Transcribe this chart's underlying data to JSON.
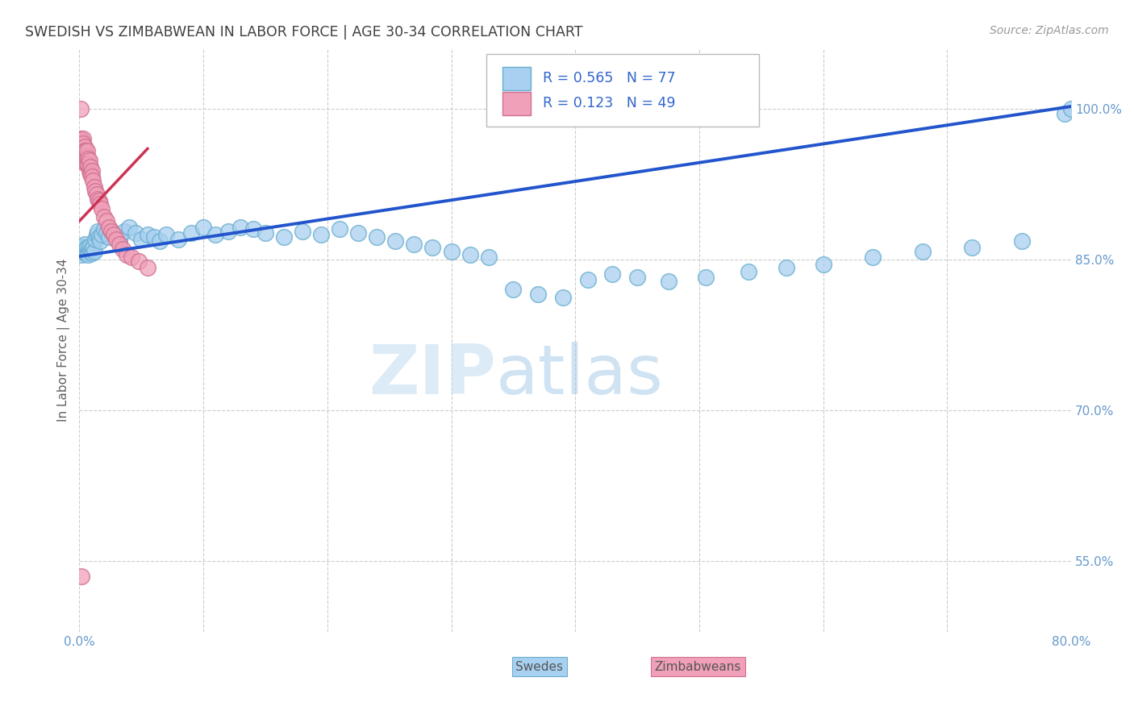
{
  "title": "SWEDISH VS ZIMBABWEAN IN LABOR FORCE | AGE 30-34 CORRELATION CHART",
  "source": "Source: ZipAtlas.com",
  "ylabel": "In Labor Force | Age 30-34",
  "xlim": [
    0.0,
    0.8
  ],
  "ylim": [
    0.48,
    1.06
  ],
  "xticks": [
    0.0,
    0.1,
    0.2,
    0.3,
    0.4,
    0.5,
    0.6,
    0.7,
    0.8
  ],
  "xticklabels": [
    "0.0%",
    "",
    "",
    "",
    "",
    "",
    "",
    "",
    "80.0%"
  ],
  "yticks": [
    0.55,
    0.7,
    0.85,
    1.0
  ],
  "yticklabels": [
    "55.0%",
    "70.0%",
    "85.0%",
    "100.0%"
  ],
  "blue_color": "#a8d0f0",
  "blue_edge_color": "#6aaed0",
  "pink_color": "#f0a0b8",
  "pink_edge_color": "#d07090",
  "trend_blue_color": "#2255cc",
  "trend_pink_color": "#cc3355",
  "watermark_zip": "ZIP",
  "watermark_atlas": "atlas",
  "background_color": "#ffffff",
  "grid_color": "#cccccc",
  "title_color": "#404040",
  "axis_label_color": "#606060",
  "tick_color": "#6699cc",
  "swedish_x": [
    0.001,
    0.002,
    0.002,
    0.003,
    0.003,
    0.004,
    0.004,
    0.005,
    0.005,
    0.006,
    0.006,
    0.007,
    0.007,
    0.008,
    0.008,
    0.009,
    0.01,
    0.01,
    0.011,
    0.012,
    0.013,
    0.014,
    0.015,
    0.016,
    0.017,
    0.018,
    0.02,
    0.022,
    0.024,
    0.026,
    0.028,
    0.032,
    0.036,
    0.04,
    0.045,
    0.05,
    0.055,
    0.06,
    0.065,
    0.07,
    0.08,
    0.09,
    0.1,
    0.11,
    0.12,
    0.13,
    0.14,
    0.15,
    0.165,
    0.18,
    0.195,
    0.21,
    0.225,
    0.24,
    0.255,
    0.27,
    0.285,
    0.3,
    0.315,
    0.33,
    0.35,
    0.37,
    0.39,
    0.41,
    0.43,
    0.45,
    0.475,
    0.505,
    0.54,
    0.57,
    0.6,
    0.64,
    0.68,
    0.72,
    0.76,
    0.795,
    0.8
  ],
  "swedish_y": [
    0.86,
    0.855,
    0.862,
    0.858,
    0.863,
    0.857,
    0.865,
    0.86,
    0.856,
    0.858,
    0.862,
    0.857,
    0.855,
    0.86,
    0.863,
    0.858,
    0.86,
    0.856,
    0.862,
    0.858,
    0.87,
    0.875,
    0.878,
    0.872,
    0.868,
    0.875,
    0.88,
    0.876,
    0.872,
    0.878,
    0.875,
    0.87,
    0.878,
    0.882,
    0.876,
    0.87,
    0.875,
    0.872,
    0.868,
    0.875,
    0.87,
    0.876,
    0.882,
    0.875,
    0.878,
    0.882,
    0.88,
    0.876,
    0.872,
    0.878,
    0.875,
    0.88,
    0.876,
    0.872,
    0.868,
    0.865,
    0.862,
    0.858,
    0.855,
    0.852,
    0.82,
    0.815,
    0.812,
    0.83,
    0.835,
    0.832,
    0.828,
    0.832,
    0.838,
    0.842,
    0.845,
    0.852,
    0.858,
    0.862,
    0.868,
    0.995,
    1.0
  ],
  "zimbabwean_x": [
    0.001,
    0.001,
    0.001,
    0.002,
    0.002,
    0.002,
    0.002,
    0.003,
    0.003,
    0.003,
    0.003,
    0.004,
    0.004,
    0.004,
    0.005,
    0.005,
    0.005,
    0.006,
    0.006,
    0.006,
    0.007,
    0.007,
    0.008,
    0.008,
    0.009,
    0.009,
    0.01,
    0.01,
    0.011,
    0.012,
    0.013,
    0.014,
    0.015,
    0.016,
    0.017,
    0.018,
    0.02,
    0.022,
    0.024,
    0.026,
    0.028,
    0.03,
    0.032,
    0.035,
    0.038,
    0.042,
    0.048,
    0.055,
    0.002
  ],
  "zimbabwean_y": [
    1.0,
    0.97,
    0.96,
    0.968,
    0.965,
    0.96,
    0.968,
    0.96,
    0.97,
    0.955,
    0.965,
    0.955,
    0.962,
    0.958,
    0.952,
    0.958,
    0.945,
    0.945,
    0.952,
    0.958,
    0.95,
    0.944,
    0.948,
    0.938,
    0.942,
    0.935,
    0.938,
    0.932,
    0.928,
    0.922,
    0.918,
    0.915,
    0.91,
    0.908,
    0.905,
    0.9,
    0.892,
    0.888,
    0.882,
    0.878,
    0.875,
    0.87,
    0.865,
    0.86,
    0.855,
    0.852,
    0.848,
    0.842,
    0.535
  ],
  "blue_trend_x0": 0.0,
  "blue_trend_y0": 0.853,
  "blue_trend_x1": 0.8,
  "blue_trend_y1": 1.002,
  "pink_trend_x0": 0.0,
  "pink_trend_y0": 0.888,
  "pink_trend_x1": 0.055,
  "pink_trend_y1": 0.96
}
